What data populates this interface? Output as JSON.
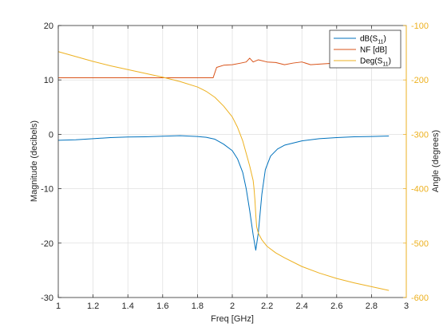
{
  "chart_data": {
    "type": "line",
    "title": "",
    "xlabel": "Freq [GHz]",
    "ylabel_left": "Magnitude (decibels)",
    "ylabel_right": "Angle (degrees)",
    "xlim": [
      1,
      3
    ],
    "ylim_left": [
      -30,
      20
    ],
    "ylim_right": [
      -600,
      -100
    ],
    "xticks": [
      "1",
      "1.2",
      "1.4",
      "1.6",
      "1.8",
      "2",
      "2.2",
      "2.4",
      "2.6",
      "2.8",
      "3"
    ],
    "yticks_left": [
      "20",
      "10",
      "0",
      "-10",
      "-20",
      "-30"
    ],
    "yticks_right": [
      "-100",
      "-200",
      "-300",
      "-400",
      "-500",
      "-600"
    ],
    "grid": true,
    "legend_position": "top-right",
    "colors": {
      "s11_db": "#0072BD",
      "nf": "#D95319",
      "s11_deg": "#EDB120",
      "right_axis": "#EDB120"
    },
    "legend": [
      {
        "text": "dB(S",
        "sub": "11",
        "suffix": ")"
      },
      {
        "text": "NF [dB]",
        "sub": "",
        "suffix": ""
      },
      {
        "text": "Deg(S",
        "sub": "11",
        "suffix": ")"
      }
    ],
    "series": [
      {
        "axis": "left",
        "x": [
          1.0,
          1.1,
          1.2,
          1.3,
          1.4,
          1.5,
          1.6,
          1.7,
          1.8,
          1.85,
          1.9,
          1.95,
          2.0,
          2.03,
          2.06,
          2.08,
          2.1,
          2.12,
          2.135,
          2.15,
          2.17,
          2.19,
          2.22,
          2.26,
          2.3,
          2.4,
          2.5,
          2.6,
          2.7,
          2.8,
          2.9
        ],
        "y": [
          -1.1,
          -1.0,
          -0.8,
          -0.6,
          -0.5,
          -0.45,
          -0.35,
          -0.25,
          -0.4,
          -0.55,
          -0.9,
          -1.8,
          -3.0,
          -4.5,
          -7.0,
          -10.0,
          -14.0,
          -18.5,
          -21.3,
          -18.0,
          -11.0,
          -6.5,
          -4.0,
          -2.7,
          -2.0,
          -1.2,
          -0.8,
          -0.6,
          -0.45,
          -0.4,
          -0.3
        ]
      },
      {
        "axis": "left",
        "x": [
          1.0,
          1.2,
          1.4,
          1.6,
          1.8,
          1.89,
          1.91,
          1.95,
          2.0,
          2.05,
          2.08,
          2.1,
          2.12,
          2.15,
          2.2,
          2.25,
          2.3,
          2.35,
          2.4,
          2.45,
          2.5,
          2.6,
          2.7,
          2.8,
          2.9
        ],
        "y": [
          10.4,
          10.4,
          10.4,
          10.4,
          10.4,
          10.4,
          12.3,
          12.7,
          12.8,
          13.1,
          13.3,
          14.0,
          13.3,
          13.7,
          13.3,
          13.2,
          12.8,
          13.1,
          13.3,
          12.8,
          12.9,
          13.1,
          12.9,
          13.0,
          12.9
        ]
      },
      {
        "axis": "right",
        "x": [
          1.0,
          1.1,
          1.2,
          1.3,
          1.4,
          1.5,
          1.6,
          1.7,
          1.8,
          1.85,
          1.9,
          1.95,
          2.0,
          2.03,
          2.06,
          2.08,
          2.1,
          2.12,
          2.125,
          2.13,
          2.135,
          2.14,
          2.15,
          2.17,
          2.2,
          2.25,
          2.3,
          2.4,
          2.5,
          2.6,
          2.7,
          2.8,
          2.9
        ],
        "y": [
          -148,
          -157,
          -166,
          -174,
          -181,
          -188,
          -195,
          -203,
          -213,
          -221,
          -232,
          -248,
          -268,
          -287,
          -312,
          -335,
          -358,
          -385,
          -400,
          -420,
          -448,
          -470,
          -482,
          -494,
          -506,
          -518,
          -527,
          -543,
          -555,
          -565,
          -573,
          -580,
          -587
        ]
      }
    ]
  }
}
